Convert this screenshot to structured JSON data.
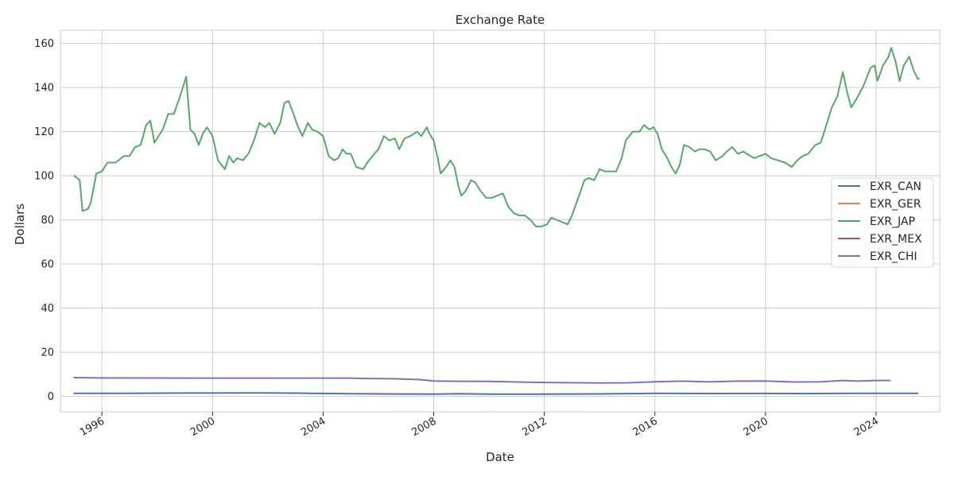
{
  "chart_data": {
    "type": "line",
    "title": "Exchange Rate",
    "xlabel": "Date",
    "ylabel": "Dollars",
    "x_ticks": [
      "1996",
      "2000",
      "2004",
      "2008",
      "2012",
      "2016",
      "2020",
      "2024"
    ],
    "y_ticks": [
      0,
      20,
      40,
      60,
      80,
      100,
      120,
      140,
      160
    ],
    "xlim": [
      1994.5,
      2026.3
    ],
    "ylim": [
      -7,
      166
    ],
    "grid": true,
    "legend_position": "center-right",
    "series": [
      {
        "name": "EXR_CAN",
        "color": "#4c72b0",
        "points": [
          [
            1995.0,
            1.37
          ],
          [
            1997.0,
            1.38
          ],
          [
            1999.0,
            1.49
          ],
          [
            2001.0,
            1.55
          ],
          [
            2002.0,
            1.57
          ],
          [
            2003.5,
            1.4
          ],
          [
            2005.0,
            1.21
          ],
          [
            2007.0,
            1.07
          ],
          [
            2008.0,
            1.0
          ],
          [
            2009.0,
            1.2
          ],
          [
            2010.0,
            1.03
          ],
          [
            2012.0,
            1.0
          ],
          [
            2014.0,
            1.1
          ],
          [
            2015.5,
            1.28
          ],
          [
            2016.0,
            1.38
          ],
          [
            2018.0,
            1.3
          ],
          [
            2020.0,
            1.34
          ],
          [
            2021.5,
            1.25
          ],
          [
            2023.0,
            1.35
          ],
          [
            2024.5,
            1.36
          ],
          [
            2025.5,
            1.4
          ]
        ]
      },
      {
        "name": "EXR_GER",
        "color": "#dd8452",
        "points": []
      },
      {
        "name": "EXR_JAP",
        "color": "#55a868",
        "points": [
          [
            1995.0,
            100
          ],
          [
            1995.2,
            98
          ],
          [
            1995.3,
            84
          ],
          [
            1995.5,
            85
          ],
          [
            1995.6,
            88
          ],
          [
            1995.8,
            101
          ],
          [
            1996.0,
            102
          ],
          [
            1996.2,
            106
          ],
          [
            1996.5,
            106
          ],
          [
            1996.8,
            109
          ],
          [
            1997.0,
            109
          ],
          [
            1997.2,
            113
          ],
          [
            1997.4,
            114
          ],
          [
            1997.6,
            123
          ],
          [
            1997.75,
            125
          ],
          [
            1997.9,
            115
          ],
          [
            1998.0,
            117
          ],
          [
            1998.2,
            121
          ],
          [
            1998.4,
            128
          ],
          [
            1998.6,
            128
          ],
          [
            1998.8,
            135
          ],
          [
            1998.95,
            141
          ],
          [
            1999.05,
            145
          ],
          [
            1999.2,
            121
          ],
          [
            1999.35,
            119
          ],
          [
            1999.5,
            114
          ],
          [
            1999.65,
            119
          ],
          [
            1999.8,
            122
          ],
          [
            2000.0,
            118
          ],
          [
            2000.2,
            107
          ],
          [
            2000.45,
            103
          ],
          [
            2000.6,
            109
          ],
          [
            2000.75,
            106
          ],
          [
            2000.9,
            108
          ],
          [
            2001.1,
            107
          ],
          [
            2001.3,
            110
          ],
          [
            2001.5,
            116
          ],
          [
            2001.7,
            124
          ],
          [
            2001.9,
            122
          ],
          [
            2002.05,
            124
          ],
          [
            2002.25,
            119
          ],
          [
            2002.45,
            124
          ],
          [
            2002.6,
            133
          ],
          [
            2002.75,
            134
          ],
          [
            2002.9,
            129
          ],
          [
            2003.1,
            122
          ],
          [
            2003.25,
            118
          ],
          [
            2003.45,
            124
          ],
          [
            2003.6,
            121
          ],
          [
            2003.8,
            120
          ],
          [
            2004.0,
            118
          ],
          [
            2004.2,
            109
          ],
          [
            2004.4,
            107
          ],
          [
            2004.55,
            108
          ],
          [
            2004.7,
            112
          ],
          [
            2004.85,
            110
          ],
          [
            2005.0,
            110
          ],
          [
            2005.2,
            104
          ],
          [
            2005.45,
            103
          ],
          [
            2005.6,
            106
          ],
          [
            2005.85,
            110
          ],
          [
            2006.0,
            112
          ],
          [
            2006.2,
            118
          ],
          [
            2006.4,
            116
          ],
          [
            2006.6,
            117
          ],
          [
            2006.75,
            112
          ],
          [
            2006.95,
            117
          ],
          [
            2007.15,
            118
          ],
          [
            2007.4,
            120
          ],
          [
            2007.55,
            118
          ],
          [
            2007.75,
            122
          ],
          [
            2007.85,
            119
          ],
          [
            2008.0,
            116
          ],
          [
            2008.15,
            108
          ],
          [
            2008.25,
            101
          ],
          [
            2008.45,
            104
          ],
          [
            2008.6,
            107
          ],
          [
            2008.75,
            104
          ],
          [
            2008.9,
            95
          ],
          [
            2009.0,
            91
          ],
          [
            2009.15,
            93
          ],
          [
            2009.35,
            98
          ],
          [
            2009.5,
            97
          ],
          [
            2009.7,
            93
          ],
          [
            2009.9,
            90
          ],
          [
            2010.1,
            90
          ],
          [
            2010.3,
            91
          ],
          [
            2010.5,
            92
          ],
          [
            2010.7,
            86
          ],
          [
            2010.9,
            83
          ],
          [
            2011.1,
            82
          ],
          [
            2011.3,
            82
          ],
          [
            2011.5,
            80
          ],
          [
            2011.7,
            77
          ],
          [
            2011.9,
            77
          ],
          [
            2012.1,
            78
          ],
          [
            2012.25,
            81
          ],
          [
            2012.45,
            80
          ],
          [
            2012.65,
            79
          ],
          [
            2012.85,
            78
          ],
          [
            2013.0,
            82
          ],
          [
            2013.2,
            89
          ],
          [
            2013.45,
            98
          ],
          [
            2013.6,
            99
          ],
          [
            2013.8,
            98
          ],
          [
            2014.0,
            103
          ],
          [
            2014.2,
            102
          ],
          [
            2014.45,
            102
          ],
          [
            2014.6,
            102
          ],
          [
            2014.8,
            108
          ],
          [
            2014.95,
            116
          ],
          [
            2015.2,
            120
          ],
          [
            2015.45,
            120
          ],
          [
            2015.6,
            123
          ],
          [
            2015.8,
            121
          ],
          [
            2015.95,
            122
          ],
          [
            2016.1,
            119
          ],
          [
            2016.25,
            112
          ],
          [
            2016.45,
            108
          ],
          [
            2016.6,
            104
          ],
          [
            2016.75,
            101
          ],
          [
            2016.9,
            105
          ],
          [
            2017.05,
            114
          ],
          [
            2017.25,
            113
          ],
          [
            2017.45,
            111
          ],
          [
            2017.6,
            112
          ],
          [
            2017.8,
            112
          ],
          [
            2018.0,
            111
          ],
          [
            2018.2,
            107
          ],
          [
            2018.45,
            109
          ],
          [
            2018.6,
            111
          ],
          [
            2018.8,
            113
          ],
          [
            2019.0,
            110
          ],
          [
            2019.2,
            111
          ],
          [
            2019.45,
            109
          ],
          [
            2019.6,
            108
          ],
          [
            2019.8,
            109
          ],
          [
            2020.0,
            110
          ],
          [
            2020.2,
            108
          ],
          [
            2020.45,
            107
          ],
          [
            2020.7,
            106
          ],
          [
            2020.95,
            104
          ],
          [
            2021.15,
            107
          ],
          [
            2021.35,
            109
          ],
          [
            2021.55,
            110
          ],
          [
            2021.8,
            114
          ],
          [
            2022.0,
            115
          ],
          [
            2022.2,
            123
          ],
          [
            2022.4,
            131
          ],
          [
            2022.6,
            136
          ],
          [
            2022.8,
            147
          ],
          [
            2022.95,
            138
          ],
          [
            2023.1,
            131
          ],
          [
            2023.3,
            135
          ],
          [
            2023.55,
            141
          ],
          [
            2023.8,
            149
          ],
          [
            2023.95,
            150
          ],
          [
            2024.05,
            143
          ],
          [
            2024.25,
            150
          ],
          [
            2024.45,
            154
          ],
          [
            2024.55,
            158
          ],
          [
            2024.7,
            152
          ],
          [
            2024.85,
            143
          ],
          [
            2025.0,
            150
          ],
          [
            2025.2,
            154
          ],
          [
            2025.35,
            148
          ],
          [
            2025.5,
            144
          ],
          [
            2025.55,
            144
          ]
        ]
      },
      {
        "name": "EXR_MEX",
        "color": "#c44e52",
        "points": []
      },
      {
        "name": "EXR_CHI",
        "color": "#8172b3",
        "points": [
          [
            1995.0,
            8.5
          ],
          [
            1996.0,
            8.35
          ],
          [
            2000.0,
            8.28
          ],
          [
            2005.0,
            8.28
          ],
          [
            2005.5,
            8.1
          ],
          [
            2006.5,
            8.0
          ],
          [
            2007.5,
            7.6
          ],
          [
            2008.0,
            7.0
          ],
          [
            2009.0,
            6.83
          ],
          [
            2010.0,
            6.8
          ],
          [
            2011.0,
            6.5
          ],
          [
            2012.0,
            6.3
          ],
          [
            2013.0,
            6.2
          ],
          [
            2014.0,
            6.1
          ],
          [
            2015.0,
            6.15
          ],
          [
            2016.0,
            6.6
          ],
          [
            2017.0,
            6.9
          ],
          [
            2018.0,
            6.6
          ],
          [
            2019.0,
            6.9
          ],
          [
            2020.0,
            7.0
          ],
          [
            2021.0,
            6.5
          ],
          [
            2022.0,
            6.6
          ],
          [
            2022.8,
            7.2
          ],
          [
            2023.3,
            6.9
          ],
          [
            2024.0,
            7.2
          ],
          [
            2024.5,
            7.2
          ]
        ]
      }
    ]
  }
}
